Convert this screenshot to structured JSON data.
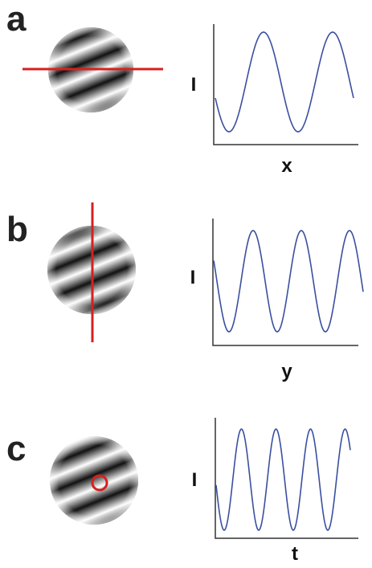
{
  "panels": [
    {
      "label": "a",
      "ylabel": "I",
      "xlabel": "x"
    },
    {
      "label": "b",
      "ylabel": "I",
      "xlabel": "y"
    },
    {
      "label": "c",
      "ylabel": "I",
      "xlabel": "t"
    }
  ]
}
